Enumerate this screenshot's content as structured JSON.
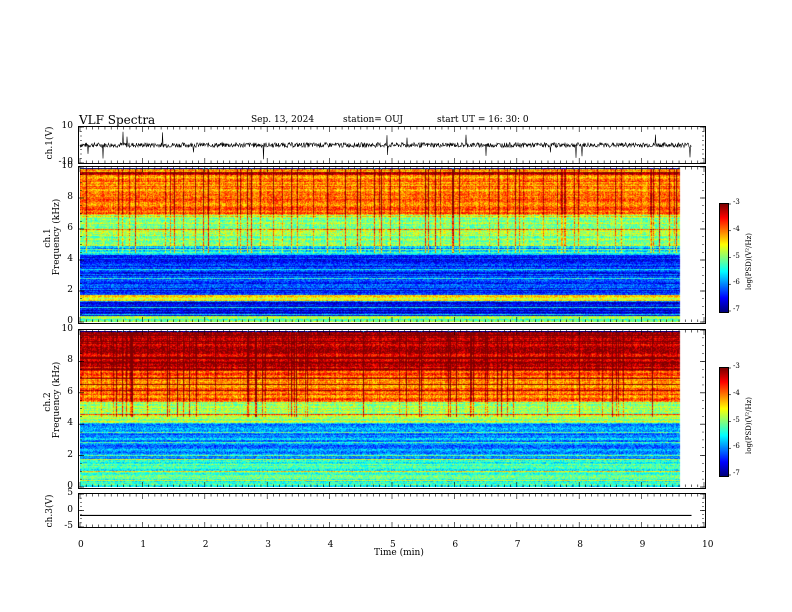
{
  "header": {
    "title": "VLF Spectra",
    "date": "Sep. 13, 2024",
    "station": "station= OUJ",
    "start_ut": "start  UT =   16: 30: 0"
  },
  "chart_data": [
    {
      "type": "line",
      "panel": "ch1-waveform",
      "ylabel": "ch.1(V)",
      "ylim": [
        -10,
        10
      ],
      "yticks": [
        "10",
        "-10"
      ],
      "xlim": [
        0,
        10
      ],
      "mean_level": 0,
      "noise_amplitude": 1.5,
      "x_end": 9.8
    },
    {
      "type": "heatmap",
      "panel": "ch1-spectrogram",
      "ylabel": "ch.1\nFrequency (kHz)",
      "ylabel_line1": "ch.1",
      "ylabel_line2": "Frequency (kHz)",
      "ylim": [
        0,
        10
      ],
      "yticks": [
        "0",
        "2",
        "4",
        "6",
        "8",
        "10"
      ],
      "xlim": [
        0,
        10
      ],
      "x_end": 9.8,
      "colorbar": {
        "label": "log(PSD)(V²/Hz)",
        "ticks": [
          "-3",
          "-4",
          "-5",
          "-6",
          "-7"
        ],
        "range": [
          -7,
          -3
        ]
      },
      "bands": [
        {
          "f_low": 0,
          "f_high": 0.4,
          "level": -5.0
        },
        {
          "f_low": 0.4,
          "f_high": 1.4,
          "level": -6.6
        },
        {
          "f_low": 1.4,
          "f_high": 1.8,
          "level": -4.5
        },
        {
          "f_low": 1.8,
          "f_high": 4.4,
          "level": -6.3
        },
        {
          "f_low": 4.4,
          "f_high": 5.0,
          "level": -5.8
        },
        {
          "f_low": 5.0,
          "f_high": 7.0,
          "level": -4.9
        },
        {
          "f_low": 7.0,
          "f_high": 10,
          "level": -4.0
        }
      ]
    },
    {
      "type": "heatmap",
      "panel": "ch2-spectrogram",
      "ylabel_line1": "ch.2",
      "ylabel_line2": "Frequency (kHz)",
      "ylim": [
        0,
        10
      ],
      "yticks": [
        "0",
        "2",
        "4",
        "6",
        "8",
        "10"
      ],
      "xlim": [
        0,
        10
      ],
      "x_end": 9.8,
      "colorbar": {
        "label": "log(PSD)(V²/Hz)",
        "ticks": [
          "-3",
          "-4",
          "-5",
          "-6",
          "-7"
        ],
        "range": [
          -7,
          -3
        ]
      },
      "bands": [
        {
          "f_low": 0,
          "f_high": 1.8,
          "level": -5.3
        },
        {
          "f_low": 1.8,
          "f_high": 4.2,
          "level": -5.9
        },
        {
          "f_low": 4.2,
          "f_high": 5.5,
          "level": -4.8
        },
        {
          "f_low": 5.5,
          "f_high": 7.5,
          "level": -3.9
        },
        {
          "f_low": 7.5,
          "f_high": 10,
          "level": -3.3
        }
      ]
    },
    {
      "type": "line",
      "panel": "ch3-waveform",
      "ylabel": "ch.3(V)",
      "ylim": [
        -5,
        5
      ],
      "yticks": [
        "5",
        "0",
        "-5"
      ],
      "xlim": [
        0,
        10
      ],
      "mean_level": -1.5,
      "x_end": 9.8
    }
  ],
  "x_axis": {
    "label": "Time (min)",
    "ticks": [
      "0",
      "1",
      "2",
      "3",
      "4",
      "5",
      "6",
      "7",
      "8",
      "9",
      "10"
    ]
  }
}
